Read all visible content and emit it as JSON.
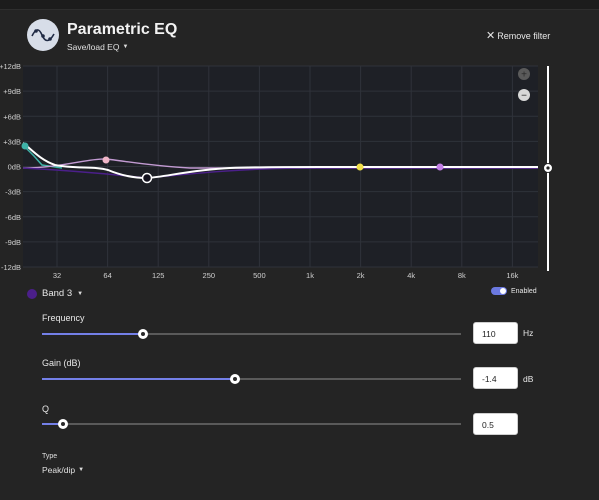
{
  "header": {
    "title": "Parametric EQ",
    "saveload_label": "Save/load EQ",
    "remove_label": "Remove filter"
  },
  "graph": {
    "y_ticks": [
      "+12dB",
      "+9dB",
      "+6dB",
      "+3dB",
      "0dB",
      "-3dB",
      "-6dB",
      "-9dB",
      "-12dB"
    ],
    "x_ticks": [
      "32",
      "64",
      "125",
      "250",
      "500",
      "1k",
      "2k",
      "4k",
      "8k",
      "16k"
    ],
    "zoom_in_label": "+",
    "zoom_out_label": "−",
    "colors": {
      "background": "#1e2026",
      "grid": "#2f323a",
      "curve": "#ffffff",
      "band1": "#3fb3a8",
      "band2": "#f0b6c8",
      "band3": "#4b1f8a",
      "band4": "#f2e04a",
      "band5": "#c47fe8"
    }
  },
  "band_selector": {
    "label": "Band 3",
    "color": "#4b1f8a"
  },
  "enabled": {
    "label": "Enabled",
    "on": true
  },
  "controls": {
    "frequency": {
      "label": "Frequency",
      "value": "110",
      "unit": "Hz",
      "level": 0.24
    },
    "gain": {
      "label": "Gain (dB)",
      "value": "-1.4",
      "unit": "dB",
      "level": 0.46
    },
    "q": {
      "label": "Q",
      "value": "0.5",
      "level": 0.05
    }
  },
  "type": {
    "label": "Type",
    "value": "Peak/dip"
  }
}
